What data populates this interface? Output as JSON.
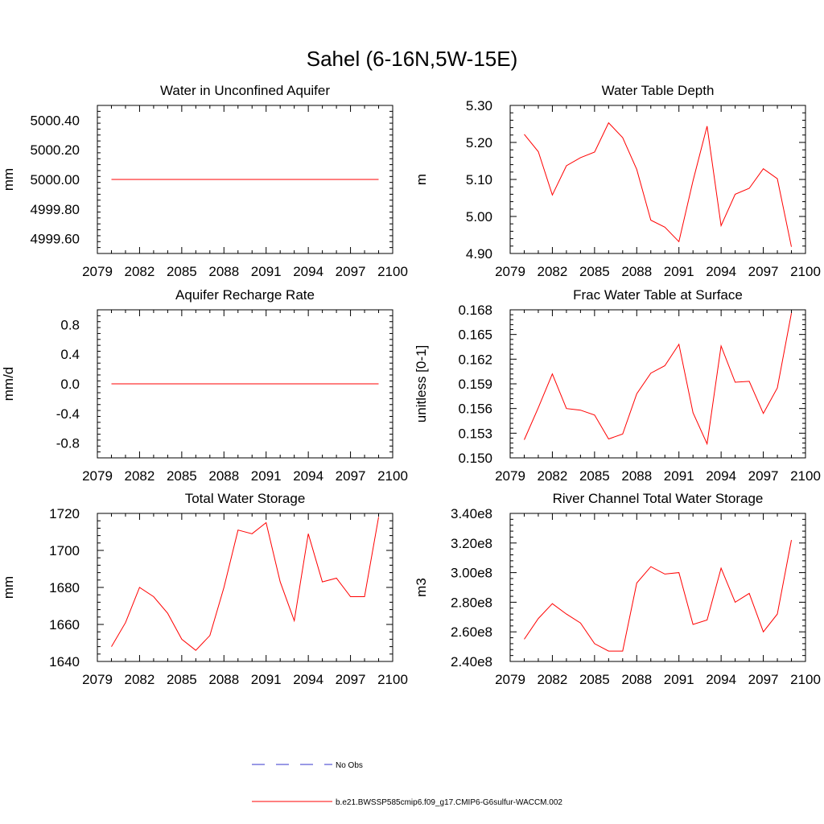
{
  "figure": {
    "title": "Sahel (6-16N,5W-15E)",
    "legend": [
      {
        "label": "No Obs",
        "color": "#3333cc",
        "dash": "dashed"
      },
      {
        "label": "b.e21.BWSSP585cmip6.f09_g17.CMIP6-G6sulfur-WACCM.002",
        "color": "#ff0000",
        "dash": "solid"
      }
    ]
  },
  "chart_data": [
    {
      "type": "line",
      "title": "Water in Unconfined Aquifer",
      "ylabel": "mm",
      "xlim": [
        2079,
        2100
      ],
      "xticks": [
        "2079",
        "2082",
        "2085",
        "2088",
        "2091",
        "2094",
        "2097",
        "2100"
      ],
      "ylim": [
        4999.5,
        5000.5
      ],
      "yticks": [
        4999.6,
        4999.8,
        5000.0,
        5000.2,
        5000.4
      ],
      "ytick_labels": [
        "4999.60",
        "4999.80",
        "5000.00",
        "5000.20",
        "5000.40"
      ],
      "x": [
        2080,
        2081,
        2082,
        2083,
        2084,
        2085,
        2086,
        2087,
        2088,
        2089,
        2090,
        2091,
        2092,
        2093,
        2094,
        2095,
        2096,
        2097,
        2098,
        2099
      ],
      "series": [
        {
          "color": "#ff0000",
          "values": [
            5000.0,
            5000.0,
            5000.0,
            5000.0,
            5000.0,
            5000.0,
            5000.0,
            5000.0,
            5000.0,
            5000.0,
            5000.0,
            5000.0,
            5000.0,
            5000.0,
            5000.0,
            5000.0,
            5000.0,
            5000.0,
            5000.0,
            5000.0
          ]
        }
      ]
    },
    {
      "type": "line",
      "title": "Water Table Depth",
      "ylabel": "m",
      "xlim": [
        2079,
        2100
      ],
      "xticks": [
        "2079",
        "2082",
        "2085",
        "2088",
        "2091",
        "2094",
        "2097",
        "2100"
      ],
      "ylim": [
        4.9,
        5.3
      ],
      "yticks": [
        4.9,
        5.0,
        5.1,
        5.2,
        5.3
      ],
      "ytick_labels": [
        "4.90",
        "5.00",
        "5.10",
        "5.20",
        "5.30"
      ],
      "x": [
        2080,
        2081,
        2082,
        2083,
        2084,
        2085,
        2086,
        2087,
        2088,
        2089,
        2090,
        2091,
        2092,
        2093,
        2094,
        2095,
        2096,
        2097,
        2098,
        2099
      ],
      "series": [
        {
          "color": "#ff0000",
          "values": [
            5.222,
            5.175,
            5.058,
            5.137,
            5.159,
            5.174,
            5.253,
            5.213,
            5.127,
            4.99,
            4.971,
            4.932,
            5.096,
            5.244,
            4.975,
            5.06,
            5.076,
            5.129,
            5.102,
            4.918
          ]
        }
      ]
    },
    {
      "type": "line",
      "title": "Aquifer Recharge Rate",
      "ylabel": "mm/d",
      "xlim": [
        2079,
        2100
      ],
      "xticks": [
        "2079",
        "2082",
        "2085",
        "2088",
        "2091",
        "2094",
        "2097",
        "2100"
      ],
      "ylim": [
        -1.0,
        1.0
      ],
      "yticks": [
        -0.8,
        -0.4,
        0.0,
        0.4,
        0.8
      ],
      "ytick_labels": [
        "-0.8",
        "-0.4",
        "0.0",
        "0.4",
        "0.8"
      ],
      "x": [
        2080,
        2081,
        2082,
        2083,
        2084,
        2085,
        2086,
        2087,
        2088,
        2089,
        2090,
        2091,
        2092,
        2093,
        2094,
        2095,
        2096,
        2097,
        2098,
        2099
      ],
      "series": [
        {
          "color": "#ff0000",
          "values": [
            0,
            0,
            0,
            0,
            0,
            0,
            0,
            0,
            0,
            0,
            0,
            0,
            0,
            0,
            0,
            0,
            0,
            0,
            0,
            0
          ]
        }
      ]
    },
    {
      "type": "line",
      "title": "Frac Water Table at Surface",
      "ylabel": "unitless [0-1]",
      "xlim": [
        2079,
        2100
      ],
      "xticks": [
        "2079",
        "2082",
        "2085",
        "2088",
        "2091",
        "2094",
        "2097",
        "2100"
      ],
      "ylim": [
        0.15,
        0.168
      ],
      "yticks": [
        0.15,
        0.153,
        0.156,
        0.159,
        0.162,
        0.165,
        0.168
      ],
      "ytick_labels": [
        "0.150",
        "0.153",
        "0.156",
        "0.159",
        "0.162",
        "0.165",
        "0.168"
      ],
      "x": [
        2080,
        2081,
        2082,
        2083,
        2084,
        2085,
        2086,
        2087,
        2088,
        2089,
        2090,
        2091,
        2092,
        2093,
        2094,
        2095,
        2096,
        2097,
        2098,
        2099
      ],
      "series": [
        {
          "color": "#ff0000",
          "values": [
            0.1522,
            0.1561,
            0.1602,
            0.156,
            0.1558,
            0.1552,
            0.1523,
            0.1529,
            0.1578,
            0.1603,
            0.1612,
            0.1638,
            0.1555,
            0.1517,
            0.1636,
            0.1592,
            0.1593,
            0.1554,
            0.1585,
            0.1676
          ]
        }
      ]
    },
    {
      "type": "line",
      "title": "Total Water Storage",
      "ylabel": "mm",
      "xlim": [
        2079,
        2100
      ],
      "xticks": [
        "2079",
        "2082",
        "2085",
        "2088",
        "2091",
        "2094",
        "2097",
        "2100"
      ],
      "ylim": [
        1640,
        1720
      ],
      "yticks": [
        1640,
        1660,
        1680,
        1700,
        1720
      ],
      "ytick_labels": [
        "1640",
        "1660",
        "1680",
        "1700",
        "1720"
      ],
      "x": [
        2080,
        2081,
        2082,
        2083,
        2084,
        2085,
        2086,
        2087,
        2088,
        2089,
        2090,
        2091,
        2092,
        2093,
        2094,
        2095,
        2096,
        2097,
        2098,
        2099
      ],
      "series": [
        {
          "color": "#ff0000",
          "values": [
            1648,
            1661,
            1680,
            1675,
            1666,
            1652,
            1646,
            1654,
            1680,
            1711,
            1709,
            1715,
            1683,
            1662,
            1709,
            1683,
            1685,
            1675,
            1675,
            1718
          ]
        }
      ]
    },
    {
      "type": "line",
      "title": "River Channel Total Water Storage",
      "ylabel": "m3",
      "xlim": [
        2079,
        2100
      ],
      "xticks": [
        "2079",
        "2082",
        "2085",
        "2088",
        "2091",
        "2094",
        "2097",
        "2100"
      ],
      "ylim": [
        240000000,
        340000000
      ],
      "yticks": [
        240000000,
        260000000,
        280000000,
        300000000,
        320000000,
        340000000
      ],
      "ytick_labels": [
        "2.40e8",
        "2.60e8",
        "2.80e8",
        "3.00e8",
        "3.20e8",
        "3.40e8"
      ],
      "x": [
        2080,
        2081,
        2082,
        2083,
        2084,
        2085,
        2086,
        2087,
        2088,
        2089,
        2090,
        2091,
        2092,
        2093,
        2094,
        2095,
        2096,
        2097,
        2098,
        2099
      ],
      "series": [
        {
          "color": "#ff0000",
          "values": [
            255000000,
            269000000,
            279000000,
            272000000,
            266000000,
            252000000,
            247000000,
            247000000,
            293000000,
            304000000,
            299000000,
            300000000,
            265000000,
            268000000,
            303000000,
            280000000,
            286000000,
            260000000,
            272000000,
            322000000
          ]
        }
      ]
    }
  ]
}
